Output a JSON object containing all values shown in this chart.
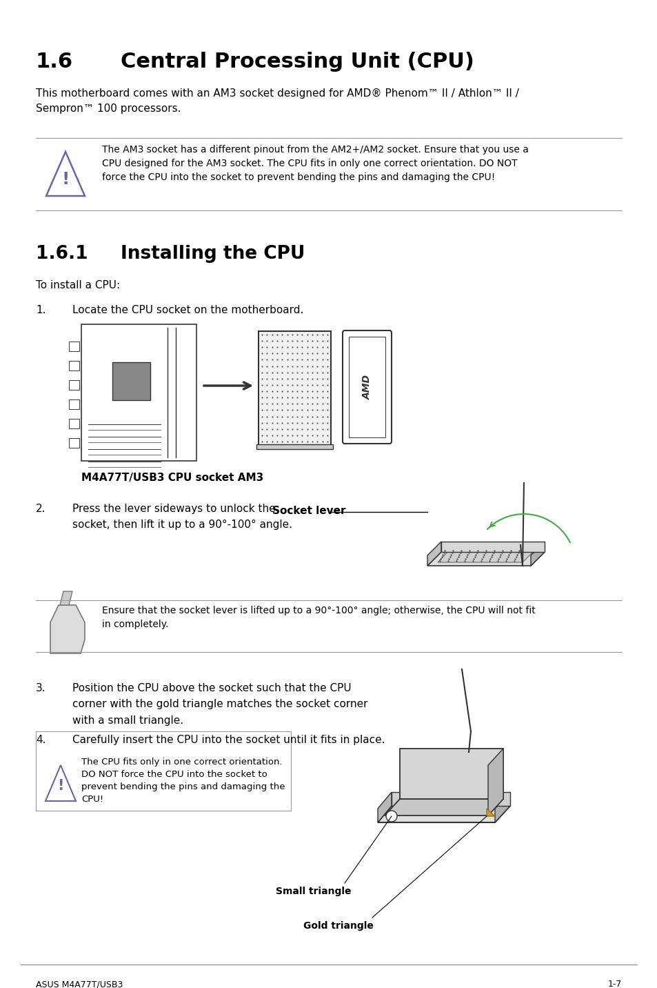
{
  "title_num": "1.6",
  "title_text": "Central Processing Unit (CPU)",
  "intro_text": "This motherboard comes with an AM3 socket designed for AMD® Phenom™ II / Athlon™ II /\nSempron™ 100 processors.",
  "warning1_text": "The AM3 socket has a different pinout from the AM2+/AM2 socket. Ensure that you use a\nCPU designed for the AM3 socket. The CPU fits in only one correct orientation. DO NOT\nforce the CPU into the socket to prevent bending the pins and damaging the CPU!",
  "section161_num": "1.6.1",
  "section161_text": "Installing the CPU",
  "install_intro": "To install a CPU:",
  "step1_num": "1.",
  "step1_text": "Locate the CPU socket on the motherboard.",
  "motherboard_label": "M4A77T/USB3 CPU socket AM3",
  "step2_num": "2.",
  "step2_text": "Press the lever sideways to unlock the\nsocket, then lift it up to a 90°-100° angle.",
  "socket_lever_label": "Socket lever",
  "warning2_text": "Ensure that the socket lever is lifted up to a 90°-100° angle; otherwise, the CPU will not fit\nin completely.",
  "step3_num": "3.",
  "step3_text": "Position the CPU above the socket such that the CPU\ncorner with the gold triangle matches the socket corner\nwith a small triangle.",
  "step4_num": "4.",
  "step4_text": "Carefully insert the CPU into the socket until it fits in place.",
  "warning3_text": "The CPU fits only in one correct orientation.\nDO NOT force the CPU into the socket to\nprevent bending the pins and damaging the\nCPU!",
  "small_triangle_label": "Small triangle",
  "gold_triangle_label": "Gold triangle",
  "footer_left": "ASUS M4A77T/USB3",
  "footer_right": "1-7",
  "bg_color": "#ffffff",
  "text_color": "#000000",
  "gray_line_color": "#999999",
  "icon_color": "#6666aa",
  "green_color": "#44aa44",
  "diagram_edge": "#333333",
  "diagram_fill_light": "#e8e8e8",
  "diagram_fill_mid": "#cccccc",
  "diagram_fill_dark": "#888888",
  "gold_color": "#c8a020"
}
